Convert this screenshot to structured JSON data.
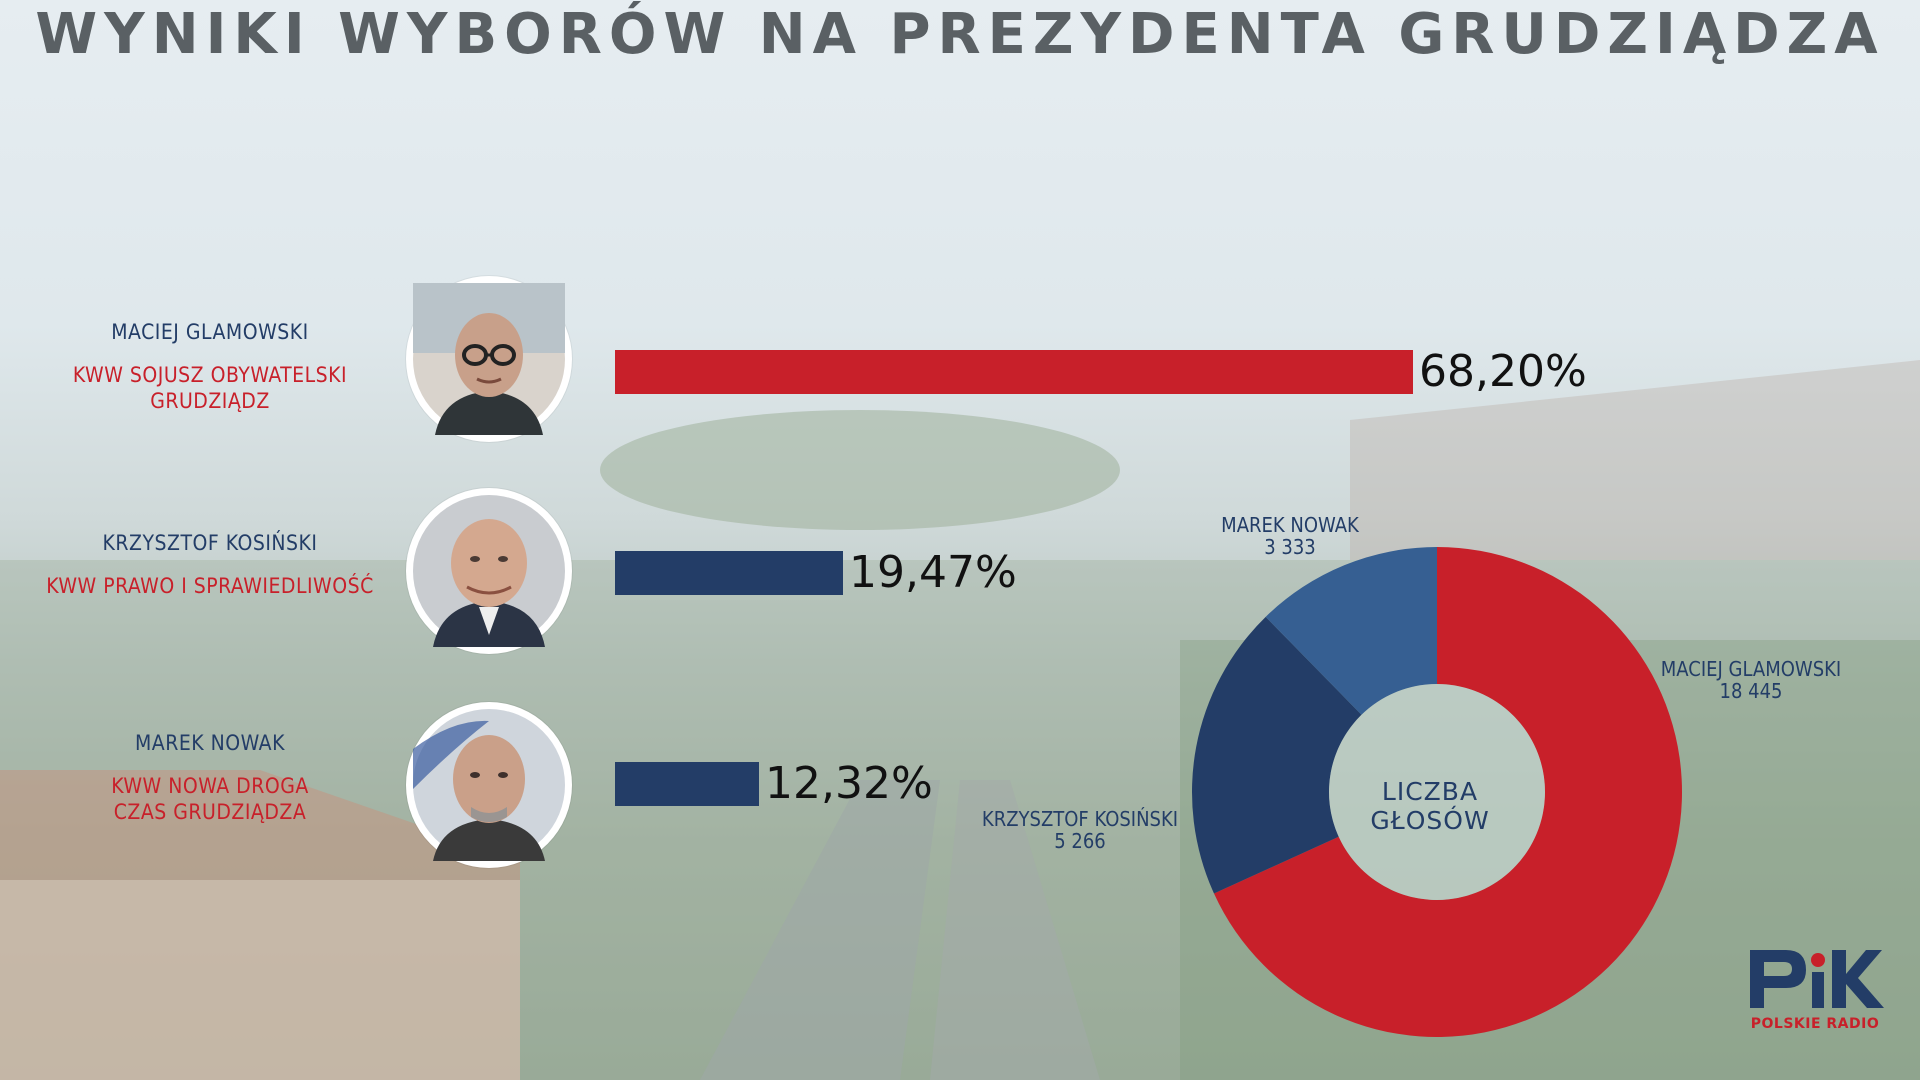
{
  "title": "WYNIKI WYBORÓW NA PREZYDENTA GRUDZIĄDZA",
  "colors": {
    "red": "#c8202a",
    "navy": "#233d67",
    "blue_light": "#365f92"
  },
  "candidates": [
    {
      "name": "MACIEJ GLAMOWSKI",
      "party_lines": [
        "KWW SOJUSZ OBYWATELSKI",
        "GRUDZIĄDZ"
      ],
      "percent_label": "68,20%",
      "photo_icon": "portrait-icon"
    },
    {
      "name": "KRZYSZTOF KOSIŃSKI",
      "party_lines": [
        "KWW PRAWO I SPRAWIEDLIWOŚĆ"
      ],
      "percent_label": "19,47%",
      "photo_icon": "portrait-icon"
    },
    {
      "name": "MAREK NOWAK",
      "party_lines": [
        "KWW NOWA DROGA",
        "CZAS GRUDZIĄDZA"
      ],
      "percent_label": "12,32%",
      "photo_icon": "portrait-icon"
    }
  ],
  "donut": {
    "center_label": "LICZBA GŁOSÓW",
    "labels": [
      {
        "name": "MACIEJ GLAMOWSKI",
        "votes": "18 445"
      },
      {
        "name": "KRZYSZTOF KOSIŃSKI",
        "votes": "5 266"
      },
      {
        "name": "MAREK NOWAK",
        "votes": "3 333"
      }
    ]
  },
  "logo": {
    "mark": "PiK",
    "text": "POLSKIE RADIO",
    "icon": "pik-logo-icon"
  },
  "chart_data": [
    {
      "type": "bar",
      "orientation": "horizontal",
      "categories": [
        "MACIEJ GLAMOWSKI",
        "KRZYSZTOF KOSIŃSKI",
        "MAREK NOWAK"
      ],
      "values": [
        68.2,
        19.47,
        12.32
      ],
      "unit": "%",
      "colors": [
        "#c8202a",
        "#233d67",
        "#233d67"
      ]
    },
    {
      "type": "pie",
      "donut": true,
      "labels": [
        "MACIEJ GLAMOWSKI",
        "KRZYSZTOF KOSIŃSKI",
        "MAREK NOWAK"
      ],
      "values": [
        18445,
        5266,
        3333
      ],
      "colors": [
        "#c8202a",
        "#233d67",
        "#365f92"
      ]
    }
  ]
}
